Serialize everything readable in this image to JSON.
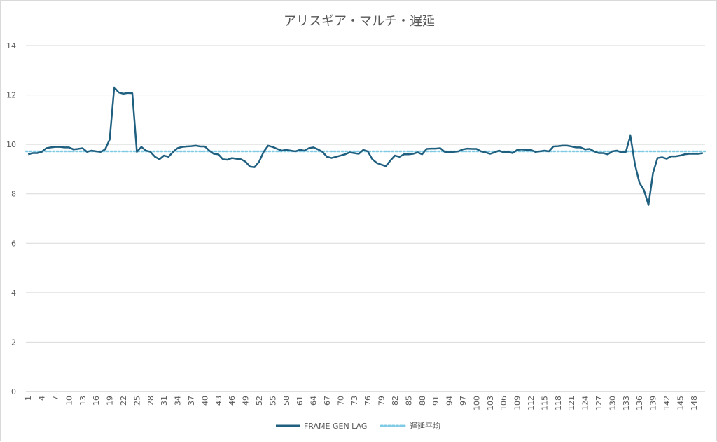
{
  "chart_data": {
    "type": "line",
    "title": "アリスギア・マルチ・遅延",
    "xlabel": "",
    "ylabel": "",
    "ylim": [
      0,
      14
    ],
    "yticks": [
      0,
      2,
      4,
      6,
      8,
      10,
      12,
      14
    ],
    "x_tick_step": 3,
    "grid": true,
    "legend_position": "bottom",
    "series": [
      {
        "name": "FRAME GEN LAG",
        "color": "#1f5f7f",
        "style": "solid",
        "values": [
          9.6,
          9.65,
          9.65,
          9.7,
          9.85,
          9.88,
          9.9,
          9.9,
          9.88,
          9.88,
          9.8,
          9.82,
          9.85,
          9.7,
          9.75,
          9.72,
          9.7,
          9.8,
          10.2,
          12.3,
          12.1,
          12.05,
          12.08,
          12.07,
          9.7,
          9.9,
          9.75,
          9.7,
          9.5,
          9.4,
          9.55,
          9.5,
          9.7,
          9.85,
          9.9,
          9.92,
          9.93,
          9.95,
          9.92,
          9.92,
          9.75,
          9.62,
          9.6,
          9.4,
          9.38,
          9.45,
          9.42,
          9.4,
          9.3,
          9.1,
          9.08,
          9.3,
          9.7,
          9.95,
          9.9,
          9.82,
          9.75,
          9.78,
          9.75,
          9.72,
          9.78,
          9.75,
          9.85,
          9.88,
          9.8,
          9.7,
          9.5,
          9.45,
          9.5,
          9.55,
          9.6,
          9.68,
          9.65,
          9.62,
          9.78,
          9.72,
          9.4,
          9.25,
          9.18,
          9.12,
          9.35,
          9.55,
          9.5,
          9.6,
          9.6,
          9.62,
          9.68,
          9.6,
          9.82,
          9.83,
          9.83,
          9.85,
          9.7,
          9.68,
          9.7,
          9.72,
          9.8,
          9.83,
          9.82,
          9.82,
          9.72,
          9.68,
          9.62,
          9.68,
          9.75,
          9.68,
          9.7,
          9.65,
          9.78,
          9.8,
          9.78,
          9.78,
          9.7,
          9.72,
          9.75,
          9.72,
          9.92,
          9.93,
          9.95,
          9.95,
          9.92,
          9.88,
          9.88,
          9.8,
          9.82,
          9.72,
          9.65,
          9.65,
          9.6,
          9.72,
          9.75,
          9.68,
          9.7,
          10.35,
          9.2,
          8.45,
          8.15,
          7.55,
          8.85,
          9.45,
          9.48,
          9.42,
          9.52,
          9.52,
          9.55,
          9.6,
          9.62,
          9.62,
          9.62,
          9.65
        ]
      },
      {
        "name": "遅延平均",
        "color": "#7fcbe6",
        "style": "dotted",
        "values": [
          9.72
        ]
      }
    ]
  }
}
